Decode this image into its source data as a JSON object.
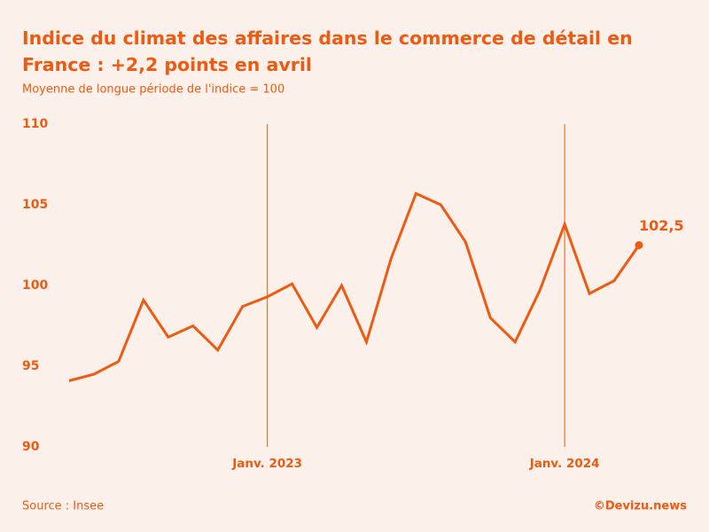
{
  "chart_data": {
    "type": "line",
    "title": [
      "Indice du climat des affaires dans le commerce de détail en",
      "France : +2,2 points en avril"
    ],
    "subtitle": "Moyenne de longue période de l'indice = 100",
    "categories": [
      null,
      null,
      null,
      null,
      null,
      null,
      null,
      null,
      "Janv. 2023",
      null,
      null,
      null,
      null,
      null,
      null,
      null,
      null,
      null,
      null,
      null,
      "Janv. 2024",
      null,
      null,
      null
    ],
    "series": [
      {
        "name": "Indice du climat des affaires",
        "color": "#ee5a12",
        "values": [
          94.1,
          94.5,
          95.3,
          99.1,
          96.8,
          97.5,
          96.0,
          98.7,
          99.3,
          100.1,
          97.4,
          100.0,
          96.5,
          101.7,
          105.7,
          105.0,
          102.7,
          98.0,
          96.5,
          99.7,
          103.8,
          99.5,
          100.3,
          102.5
        ],
        "value_labels": [
          null,
          null,
          null,
          null,
          null,
          null,
          null,
          null,
          null,
          null,
          null,
          null,
          null,
          null,
          null,
          null,
          null,
          null,
          null,
          null,
          null,
          null,
          null,
          "102,5"
        ]
      }
    ],
    "ylim": [
      90,
      110
    ],
    "yticks": [
      90,
      95,
      100,
      105,
      110
    ],
    "grid": false,
    "source": "Source : Insee",
    "credit": "©Devizu.news"
  }
}
